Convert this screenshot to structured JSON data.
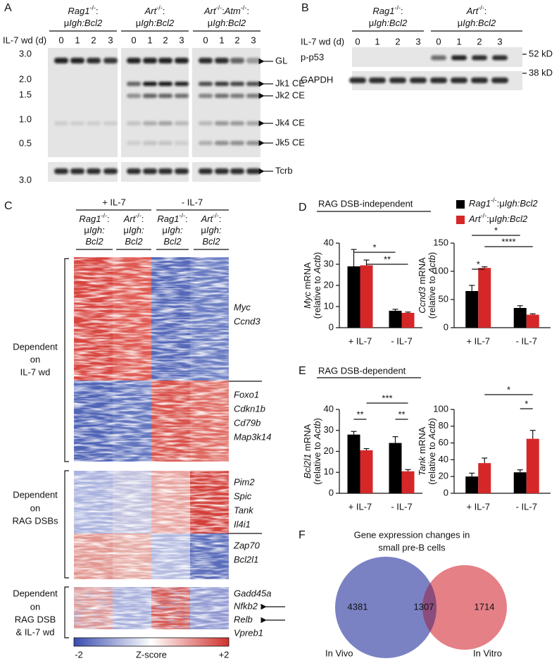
{
  "panel_a": {
    "letter": "A",
    "x_label": "IL-7 wd (d)",
    "lanes": [
      "0",
      "1",
      "2",
      "3"
    ],
    "groups": [
      {
        "line1": [
          [
            "Rag1",
            "i"
          ],
          [
            "-/-",
            "s"
          ],
          [
            ":",
            "n"
          ]
        ],
        "line2": [
          [
            "μ",
            "n"
          ],
          [
            "Igh:Bcl2",
            "i"
          ]
        ]
      },
      {
        "line1": [
          [
            "Art",
            "i"
          ],
          [
            "-/-",
            "s"
          ],
          [
            ":",
            "n"
          ]
        ],
        "line2": [
          [
            "μ",
            "n"
          ],
          [
            "Igh:Bcl2",
            "i"
          ]
        ]
      },
      {
        "line1": [
          [
            "Art",
            "i"
          ],
          [
            "-/-",
            "s"
          ],
          [
            ":",
            "n"
          ],
          [
            "Atm",
            "i"
          ],
          [
            "-/-",
            "s"
          ],
          [
            ":",
            "n"
          ]
        ],
        "line2": [
          [
            "μ",
            "n"
          ],
          [
            "Igh:Bcl2",
            "i"
          ]
        ]
      }
    ],
    "size_markers": [
      "3.0",
      "2.0",
      "1.5",
      "1.0",
      "0.5"
    ],
    "loading_marker": "3.0",
    "bands": [
      "GL",
      "Jk1 CE",
      "Jk2 CE",
      "Jk4 CE",
      "Jk5 CE"
    ],
    "loading": "Tcrb"
  },
  "panel_b": {
    "letter": "B",
    "x_label": "IL-7 wd (d)",
    "lanes": [
      "0",
      "1",
      "2",
      "3"
    ],
    "groups": [
      {
        "line1": [
          [
            "Rag1",
            "i"
          ],
          [
            "-/-",
            "s"
          ],
          [
            ":",
            "n"
          ]
        ],
        "line2": [
          [
            "μ",
            "n"
          ],
          [
            "Igh:Bcl2",
            "i"
          ]
        ]
      },
      {
        "line1": [
          [
            "Art",
            "i"
          ],
          [
            "-/-",
            "s"
          ],
          [
            ":",
            "n"
          ]
        ],
        "line2": [
          [
            "μ",
            "n"
          ],
          [
            "Igh:Bcl2",
            "i"
          ]
        ]
      }
    ],
    "rows": [
      "p-p53",
      "GAPDH"
    ],
    "markers": [
      "52 kD",
      "38 kD"
    ]
  },
  "panel_c": {
    "letter": "C",
    "conditions": [
      "+ IL-7",
      "- IL-7"
    ],
    "genotypes": [
      [
        [
          [
            "Rag1",
            "i"
          ],
          [
            "-/-",
            "s"
          ],
          [
            ":",
            "n"
          ]
        ],
        [
          [
            "μ",
            "n"
          ],
          [
            "Igh:",
            "i"
          ]
        ],
        [
          [
            "Bcl2",
            "i"
          ]
        ]
      ],
      [
        [
          [
            "Art",
            "i"
          ],
          [
            "-/-",
            "s"
          ],
          [
            ":",
            "n"
          ]
        ],
        [
          [
            "μ",
            "n"
          ],
          [
            "Igh:",
            "i"
          ]
        ],
        [
          [
            "Bcl2",
            "i"
          ]
        ]
      ],
      [
        [
          [
            "Rag1",
            "i"
          ],
          [
            "-/-",
            "s"
          ],
          [
            ":",
            "n"
          ]
        ],
        [
          [
            "μ",
            "n"
          ],
          [
            "Igh:",
            "i"
          ]
        ],
        [
          [
            "Bcl2",
            "i"
          ]
        ]
      ],
      [
        [
          [
            "Art",
            "i"
          ],
          [
            "-/-",
            "s"
          ],
          [
            ":",
            "n"
          ]
        ],
        [
          [
            "μ",
            "n"
          ],
          [
            "Igh:",
            "i"
          ]
        ],
        [
          [
            "Bcl2",
            "i"
          ]
        ]
      ]
    ],
    "clusters": [
      {
        "label": [
          "Dependent",
          "on",
          "IL-7 wd"
        ],
        "genes": [
          [
            "Myc",
            "Ccnd3"
          ],
          [
            "Foxo1",
            "Cdkn1b",
            "Cd79b",
            "Map3k14"
          ]
        ]
      },
      {
        "label": [
          "Dependent",
          "on",
          "RAG DSBs"
        ],
        "genes": [
          [
            "Pim2",
            "Spic",
            "Tank",
            "Il4i1"
          ],
          [
            "Zap70",
            "Bcl2l1"
          ]
        ]
      },
      {
        "label": [
          "Dependent",
          "on",
          "RAG DSB",
          "& IL-7 wd"
        ],
        "genes": [
          [
            "Gadd45a",
            {
              "name": "Nfkb2",
              "color": "#d0312d"
            },
            {
              "name": "Relb",
              "color": "#d0312d"
            },
            "Vpreb1"
          ]
        ]
      }
    ],
    "colorbar": {
      "min": "-2",
      "label": "Z-score",
      "max": "+2"
    }
  },
  "panel_d": {
    "letter": "D",
    "heading": "RAG DSB-independent",
    "legend": [
      {
        "name": [
          [
            "Rag1",
            "i"
          ],
          [
            "-/-",
            "s"
          ],
          [
            ":μ",
            "n"
          ],
          [
            "Igh:Bcl2",
            "i"
          ]
        ],
        "color": "#000000"
      },
      {
        "name": [
          [
            "Art",
            "i"
          ],
          [
            "-/-",
            "s"
          ],
          [
            ":μ",
            "n"
          ],
          [
            "Igh:Bcl2",
            "i"
          ]
        ],
        "color": "#d62728"
      }
    ],
    "charts": [
      {
        "type": "bar",
        "ylabel": [
          [
            "Myc",
            "i"
          ],
          [
            " mRNA",
            "n"
          ]
        ],
        "ylabel2": [
          [
            "(relative to ",
            "n"
          ],
          [
            "Actb",
            "i"
          ],
          [
            ")",
            "n"
          ]
        ],
        "categories": [
          "+ IL-7",
          "- IL-7"
        ],
        "ylim": [
          0,
          40
        ],
        "yticks": [
          0,
          10,
          20,
          30,
          40
        ],
        "series": [
          {
            "values": [
              29,
              8
            ],
            "errors": [
              8,
              0.7
            ]
          },
          {
            "values": [
              29.5,
              7
            ],
            "errors": [
              2.5,
              0.4
            ]
          }
        ],
        "significance": [
          "*",
          "**"
        ]
      },
      {
        "type": "bar",
        "ylabel": [
          [
            "Ccnd3",
            "i"
          ],
          [
            " mRNA",
            "n"
          ]
        ],
        "ylabel2": [
          [
            "(relative to ",
            "n"
          ],
          [
            "Actb",
            "i"
          ],
          [
            ")",
            "n"
          ]
        ],
        "categories": [
          "+ IL-7",
          "- IL-7"
        ],
        "ylim": [
          0,
          150
        ],
        "yticks": [
          0,
          50,
          100,
          150
        ],
        "series": [
          {
            "values": [
              65,
              35
            ],
            "errors": [
              10,
              4
            ]
          },
          {
            "values": [
              106,
              23
            ],
            "errors": [
              2,
              1.5
            ]
          }
        ],
        "significance": [
          "*",
          "****",
          "*"
        ]
      }
    ]
  },
  "panel_e": {
    "letter": "E",
    "heading": "RAG DSB-dependent",
    "charts": [
      {
        "type": "bar",
        "ylabel": [
          [
            "Bcl2l1",
            "i"
          ],
          [
            " mRNA",
            "n"
          ]
        ],
        "ylabel2": [
          [
            "(relative to ",
            "n"
          ],
          [
            "Actb",
            "i"
          ],
          [
            ")",
            "n"
          ]
        ],
        "categories": [
          "+ IL-7",
          "- IL-7"
        ],
        "ylim": [
          0,
          40
        ],
        "yticks": [
          0,
          10,
          20,
          30,
          40
        ],
        "series": [
          {
            "values": [
              28,
              24
            ],
            "errors": [
              1.5,
              3
            ]
          },
          {
            "values": [
              20.5,
              10.5
            ],
            "errors": [
              0.8,
              0.8
            ]
          }
        ],
        "significance": [
          "**",
          "***",
          "**"
        ]
      },
      {
        "type": "bar",
        "ylabel": [
          [
            "Tank",
            "i"
          ],
          [
            " mRNA",
            "n"
          ]
        ],
        "ylabel2": [
          [
            "(relative to ",
            "n"
          ],
          [
            "Actb",
            "i"
          ],
          [
            ")",
            "n"
          ]
        ],
        "categories": [
          "+ IL-7",
          "- IL-7"
        ],
        "ylim": [
          0,
          100
        ],
        "yticks": [
          0,
          20,
          40,
          60,
          80,
          100
        ],
        "series": [
          {
            "values": [
              20,
              25
            ],
            "errors": [
              4,
              3
            ]
          },
          {
            "values": [
              36,
              65
            ],
            "errors": [
              6,
              10
            ]
          }
        ],
        "significance": [
          "*",
          "*"
        ]
      }
    ]
  },
  "panel_f": {
    "letter": "F",
    "title": [
      "Gene expression changes in",
      "small pre-B cells"
    ],
    "sets": [
      {
        "name": "In Vivo",
        "color": "#7a82c4"
      },
      {
        "name": "In Vitro",
        "color": "#e06a72"
      }
    ],
    "values": [
      4381,
      1307,
      1714
    ]
  }
}
